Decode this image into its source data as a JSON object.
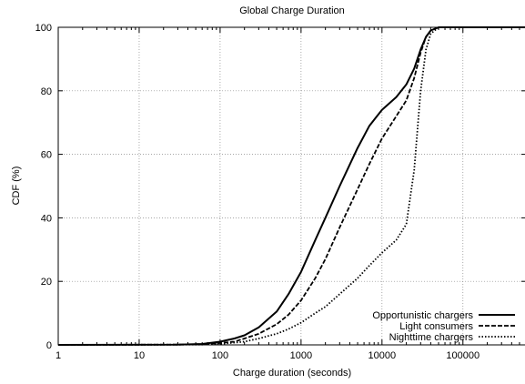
{
  "chart_data": {
    "type": "line",
    "title": "Global Charge Duration",
    "xlabel": "Charge duration (seconds)",
    "ylabel": "CDF (%)",
    "xscale": "log",
    "xlim": [
      1,
      600000
    ],
    "ylim": [
      0,
      100
    ],
    "x_ticks": [
      1,
      10,
      100,
      1000,
      10000,
      100000
    ],
    "x_tick_labels": [
      "1",
      "10",
      "100",
      "1000",
      "10000",
      "100000"
    ],
    "y_ticks": [
      0,
      20,
      40,
      60,
      80,
      100
    ],
    "y_tick_labels": [
      "0",
      "20",
      "40",
      "60",
      "80",
      "100"
    ],
    "grid": true,
    "legend_position": "bottom-right",
    "series": [
      {
        "name": "Opportunistic chargers",
        "line_style": "solid",
        "x": [
          1,
          30,
          60,
          100,
          150,
          200,
          300,
          500,
          700,
          1000,
          1500,
          2000,
          3000,
          5000,
          7000,
          10000,
          15000,
          20000,
          25000,
          30000,
          35000,
          40000,
          50000,
          70000,
          100000,
          600000
        ],
        "y": [
          0,
          0.1,
          0.3,
          1,
          2,
          3,
          5.5,
          10.5,
          16,
          23,
          33,
          40,
          50,
          62,
          69,
          74,
          78,
          82,
          87,
          93,
          97,
          99,
          100,
          100,
          100,
          100
        ]
      },
      {
        "name": "Light consumers",
        "line_style": "dashed",
        "x": [
          1,
          30,
          60,
          100,
          150,
          200,
          300,
          500,
          700,
          1000,
          1500,
          2000,
          3000,
          5000,
          7000,
          10000,
          15000,
          20000,
          25000,
          30000,
          35000,
          40000,
          50000,
          70000,
          100000,
          600000
        ],
        "y": [
          0,
          0.1,
          0.2,
          0.6,
          1,
          2,
          3.5,
          6.5,
          9.5,
          14,
          21,
          27,
          37,
          49,
          57,
          65,
          72,
          77,
          84,
          92,
          97,
          99,
          100,
          100,
          100,
          100
        ]
      },
      {
        "name": "Nighttime chargers",
        "line_style": "dotted",
        "x": [
          1,
          60,
          100,
          200,
          300,
          500,
          700,
          1000,
          1500,
          2000,
          3000,
          5000,
          7000,
          10000,
          15000,
          20000,
          25000,
          30000,
          35000,
          40000,
          50000,
          70000,
          600000
        ],
        "y": [
          0,
          0.1,
          0.3,
          1,
          2,
          3.5,
          5,
          7,
          10,
          12,
          16,
          21,
          25,
          29,
          33,
          38,
          55,
          80,
          93,
          98,
          100,
          100,
          100
        ]
      }
    ]
  }
}
